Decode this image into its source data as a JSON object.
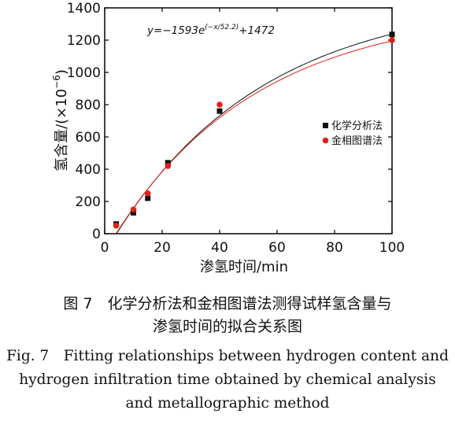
{
  "chart_data": {
    "type": "scatter",
    "xlabel": "渗氢时间/min",
    "ylabel": "氢含量/(×10",
    "ylabel_exp": "−6",
    "ylabel_close": ")",
    "xlim": [
      0,
      100
    ],
    "ylim": [
      0,
      1400
    ],
    "xticks": [
      0,
      20,
      40,
      60,
      80,
      100
    ],
    "yticks": [
      0,
      200,
      400,
      600,
      800,
      1000,
      1200,
      1400
    ],
    "equation": {
      "prefix": "y=−1593e",
      "exponent": "(−x/52.2)",
      "suffix": "+1472"
    },
    "legend_position": "right",
    "series": [
      {
        "name": "化学分析法",
        "marker": "square",
        "color": "#111111",
        "points": [
          [
            4,
            60
          ],
          [
            10,
            130
          ],
          [
            15,
            220
          ],
          [
            22,
            440
          ],
          [
            40,
            760
          ],
          [
            100,
            1235
          ]
        ]
      },
      {
        "name": "金相图谱法",
        "marker": "circle",
        "color": "#e0201b",
        "points": [
          [
            4,
            50
          ],
          [
            10,
            150
          ],
          [
            15,
            250
          ],
          [
            22,
            420
          ],
          [
            40,
            800
          ],
          [
            100,
            1200
          ]
        ]
      }
    ],
    "fit_curves": [
      {
        "color": "#111111",
        "A": 1593,
        "t": 52.2,
        "y0": 1472
      },
      {
        "color": "#e0201b",
        "A": 1515,
        "t": 50,
        "y0": 1400
      }
    ]
  },
  "caption": {
    "cn_line1": "图 7　化学分析法和金相图谱法测得试样氢含量与",
    "cn_line2": "渗氢时间的拟合关系图",
    "en_line1": "Fig. 7　Fitting relationships between hydrogen content and",
    "en_line2": "hydrogen infiltration time obtained by chemical analysis",
    "en_line3": "and metallographic method"
  }
}
